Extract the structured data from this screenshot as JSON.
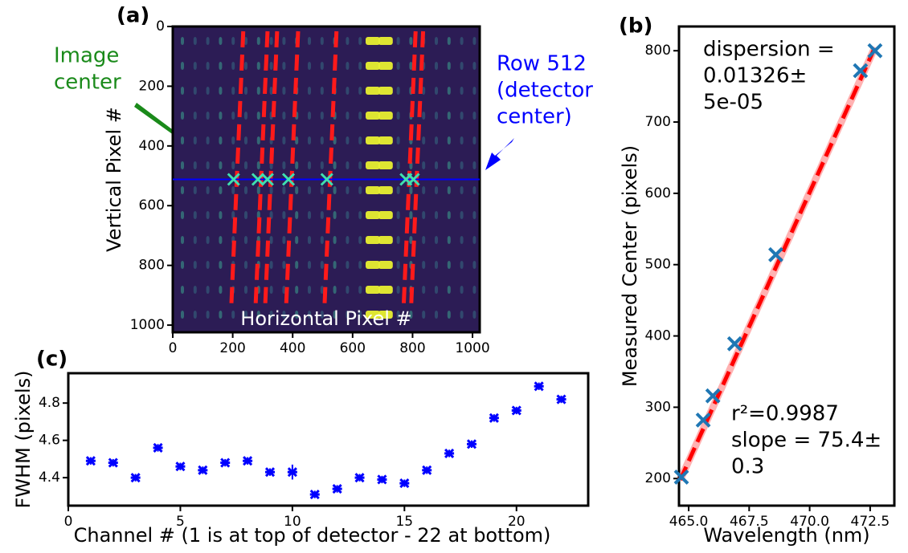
{
  "chart_data": [
    {
      "type": "image",
      "label": "(a)",
      "xlabel": "Horizontal Pixel #",
      "ylabel": "Vertical Pixel #",
      "xlim": [
        0,
        1024
      ],
      "ylim": [
        1024,
        0
      ],
      "xticks": [
        0,
        200,
        400,
        600,
        800,
        1000
      ],
      "yticks": [
        0,
        200,
        400,
        600,
        800,
        1000
      ],
      "row_line": {
        "y": 512,
        "color": "#0000ff"
      },
      "markers": {
        "x": [
          203,
          284,
          316,
          386,
          514,
          778,
          803
        ],
        "y": [
          512,
          512,
          512,
          512,
          512,
          512,
          512
        ],
        "color": "#3fe0b0"
      },
      "annotations": [
        {
          "lines": [
            "Image",
            "center"
          ],
          "color": "#1a8a1a"
        },
        {
          "lines": [
            "Row 512",
            "(detector",
            "center)"
          ],
          "color": "#0000ff"
        }
      ]
    },
    {
      "type": "scatter",
      "label": "(b)",
      "xlabel": "Wavelength (nm)",
      "ylabel": "Measured Center (pixels)",
      "xlim": [
        464.6,
        473.5
      ],
      "ylim": [
        162,
        834
      ],
      "xticks": [
        {
          "value": 465,
          "label": "465.0"
        },
        467.5,
        {
          "value": 470,
          "label": "470.0"
        },
        472.5
      ],
      "yticks": [
        200,
        300,
        400,
        500,
        600,
        700,
        800
      ],
      "x": [
        464.7,
        465.6,
        466.0,
        466.9,
        468.6,
        472.1,
        472.7
      ],
      "values": [
        202,
        282,
        316,
        389,
        514,
        772,
        800
      ],
      "color": "#1f77b4",
      "fit": {
        "x": [
          464.65,
          472.7
        ],
        "values": [
          198,
          805
        ],
        "color": "#ff0000"
      },
      "annotations": [
        {
          "lines": [
            "dispersion =",
            "0.01326±",
            "5e-05"
          ]
        },
        {
          "lines": [
            "r²=0.9987",
            "slope = 75.4±",
            "0.3"
          ]
        }
      ]
    },
    {
      "type": "errorbar",
      "label": "(c)",
      "xlabel": "Channel # (1 is at top of detector - 22 at bottom)",
      "ylabel": "FWHM (pixels)",
      "xlim": [
        0,
        23.2
      ],
      "ylim": [
        4.25,
        4.96
      ],
      "xticks": [
        0,
        5,
        10,
        15,
        20
      ],
      "yticks": [
        4.4,
        4.6,
        4.8
      ],
      "x": [
        1,
        2,
        3,
        4,
        5,
        6,
        7,
        8,
        9,
        10,
        11,
        12,
        13,
        14,
        15,
        16,
        17,
        18,
        19,
        20,
        21,
        22
      ],
      "values": [
        4.49,
        4.48,
        4.4,
        4.56,
        4.46,
        4.44,
        4.48,
        4.49,
        4.43,
        4.43,
        4.31,
        4.34,
        4.4,
        4.39,
        4.37,
        4.44,
        4.53,
        4.58,
        4.72,
        4.76,
        4.89,
        4.82
      ],
      "errors": [
        0.02,
        0.02,
        0.02,
        0.02,
        0.02,
        0.02,
        0.02,
        0.02,
        0.02,
        0.04,
        0.02,
        0.02,
        0.02,
        0.02,
        0.02,
        0.02,
        0.02,
        0.02,
        0.02,
        0.02,
        0.02,
        0.02
      ],
      "color": "#0000ff"
    }
  ]
}
